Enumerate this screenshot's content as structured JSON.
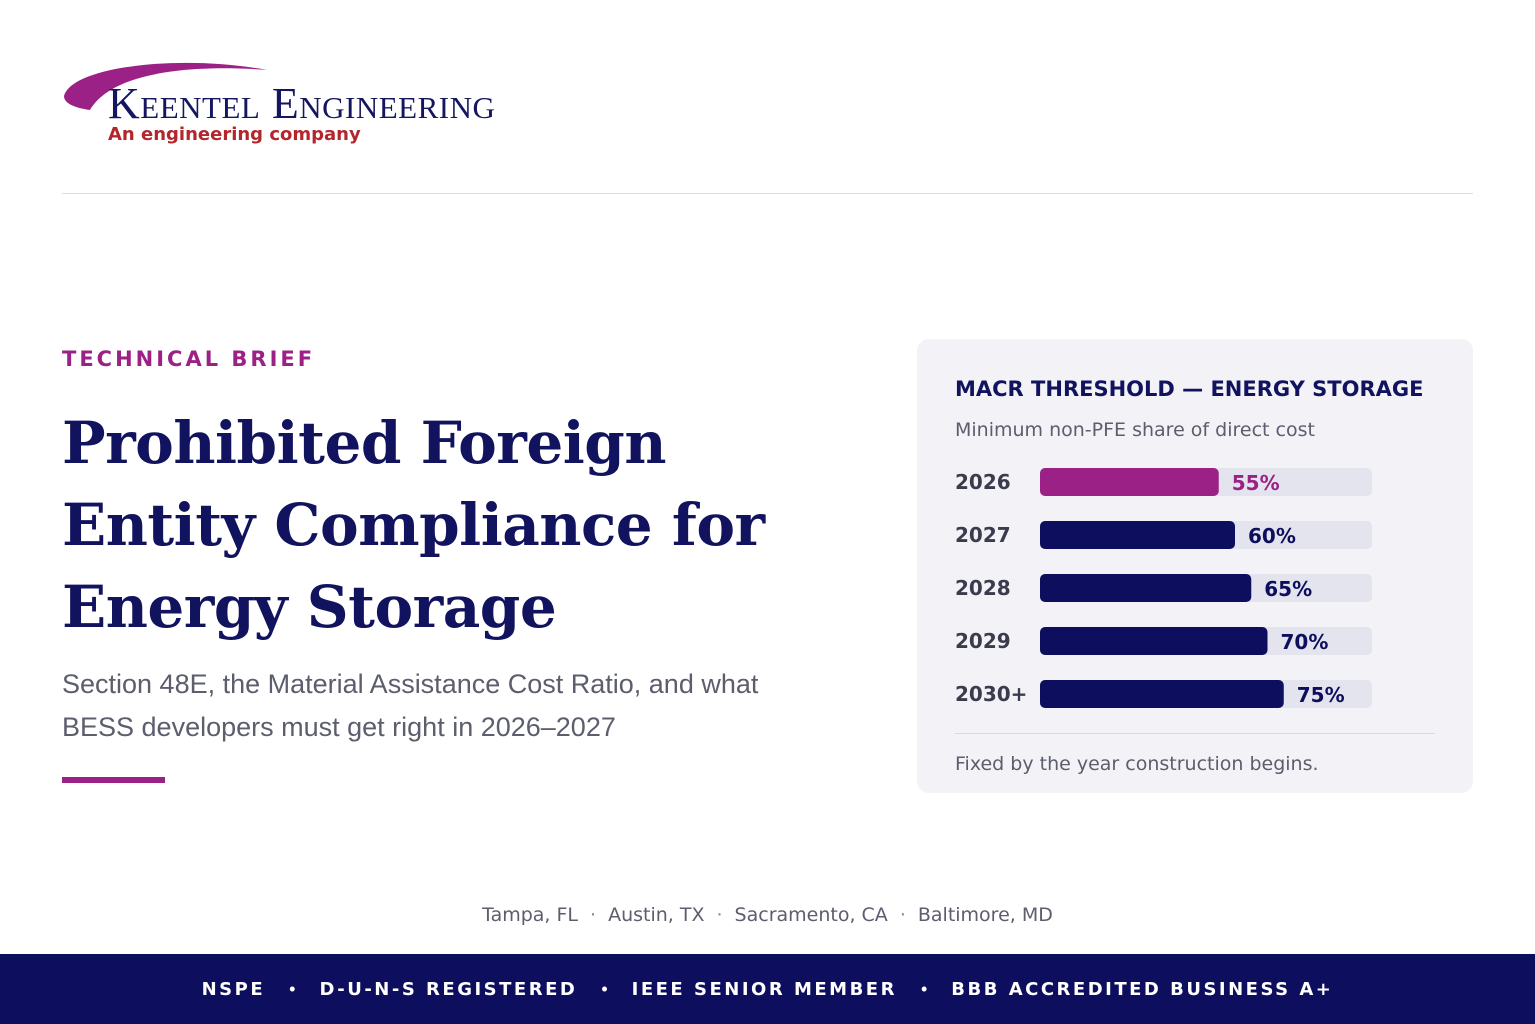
{
  "logo": {
    "name": "Keentel Engineering",
    "tagline": "An engineering company",
    "swoosh_color": "#9c2186"
  },
  "hero": {
    "eyebrow": "TECHNICAL BRIEF",
    "title": "Prohibited Foreign Entity Compliance for Energy Storage",
    "subtitle": "Section 48E, the Material Assistance Cost Ratio, and what BESS developers must get right in 2026–2027"
  },
  "chart_card": {
    "title": "MACR THRESHOLD — ENERGY STORAGE",
    "subtitle": "Minimum non-PFE share of direct cost",
    "footnote": "Fixed by the year construction begins."
  },
  "chart_data": {
    "type": "bar",
    "orientation": "horizontal",
    "categories": [
      "2026",
      "2027",
      "2028",
      "2029",
      "2030+"
    ],
    "values": [
      55,
      60,
      65,
      70,
      75
    ],
    "value_labels": [
      "55%",
      "60%",
      "65%",
      "70%",
      "75%"
    ],
    "title": "MACR THRESHOLD — ENERGY STORAGE",
    "subtitle": "Minimum non-PFE share of direct cost",
    "xlim": [
      0,
      100
    ],
    "grid": false,
    "legend": "none",
    "colors": {
      "highlight": "#9c2186",
      "default": "#0d0f5e",
      "track": "#e4e4ee"
    },
    "highlight_index": 0
  },
  "locations": [
    "Tampa, FL",
    "Austin, TX",
    "Sacramento, CA",
    "Baltimore, MD"
  ],
  "footer": {
    "items": [
      "NSPE",
      "D-U-N-S REGISTERED",
      "IEEE SENIOR MEMBER",
      "BBB ACCREDITED BUSINESS A+"
    ],
    "background": "#0d0f5e"
  }
}
